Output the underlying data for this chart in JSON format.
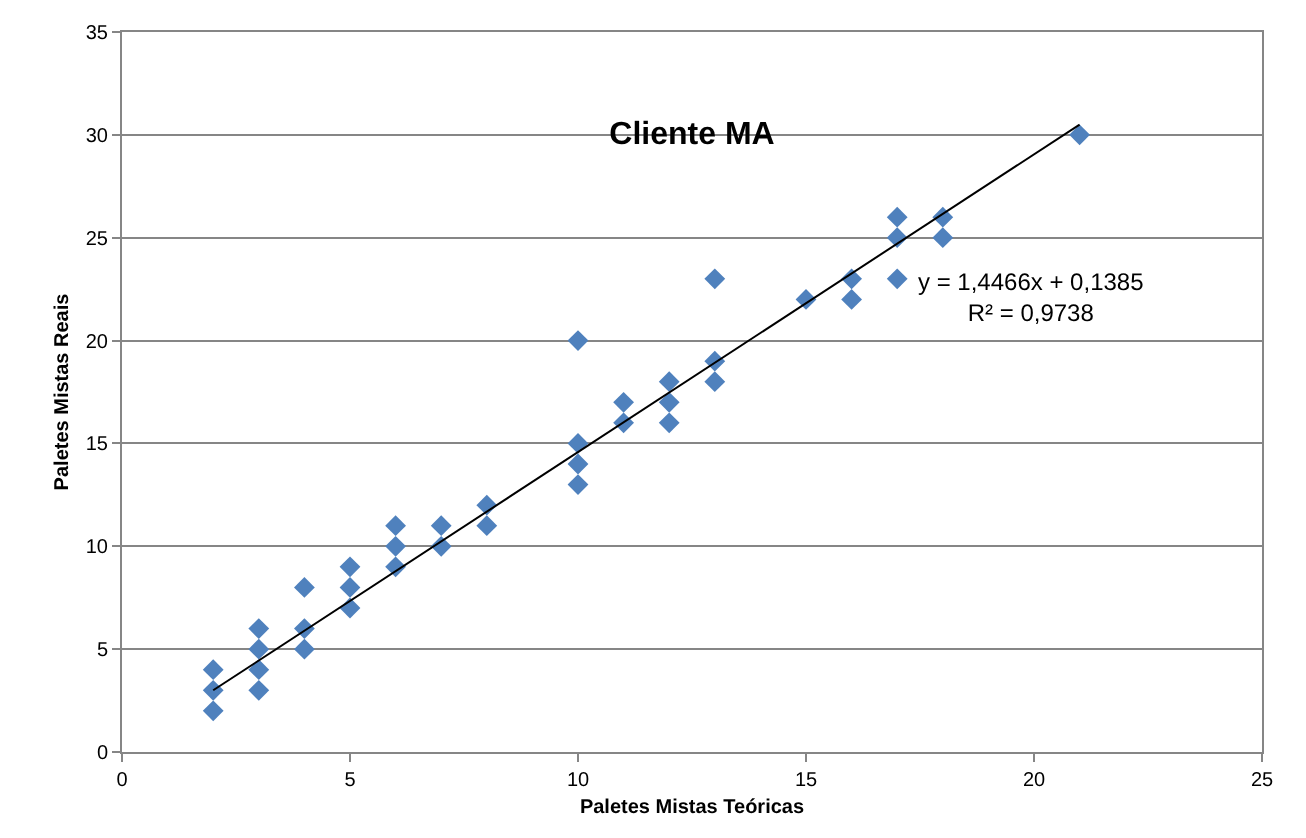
{
  "chart_data": {
    "type": "scatter",
    "title": "Cliente MA",
    "xlabel": "Paletes Mistas Teóricas",
    "ylabel": "Paletes Mistas Reais",
    "series": [
      {
        "color": "#4f81bd",
        "marker": "diamond",
        "x": [
          2,
          2,
          2,
          3,
          3,
          3,
          3,
          4,
          4,
          4,
          5,
          5,
          5,
          6,
          6,
          6,
          7,
          7,
          8,
          8,
          10,
          10,
          10,
          10,
          11,
          11,
          12,
          12,
          12,
          13,
          13,
          13,
          15,
          16,
          16,
          17,
          17,
          17,
          18,
          18,
          21
        ],
        "values": [
          2,
          3,
          4,
          3,
          4,
          5,
          6,
          5,
          6,
          8,
          7,
          8,
          9,
          9,
          10,
          11,
          10,
          11,
          11,
          12,
          13,
          14,
          15,
          20,
          16,
          17,
          16,
          17,
          18,
          18,
          19,
          23,
          22,
          22,
          23,
          23,
          25,
          26,
          25,
          26,
          30
        ]
      },
      {
        "type": "line",
        "color": "#000000",
        "marker": "none",
        "x": [
          2,
          21
        ],
        "values": [
          3.0,
          30.5
        ]
      }
    ],
    "annotations": [
      "y = 1,4466x + 0,1385\nR² = 0,9738"
    ],
    "xlim": [
      0,
      25
    ],
    "xticks": [
      0,
      5,
      10,
      15,
      20,
      25
    ],
    "ylim": [
      0,
      35
    ],
    "yticks": [
      0,
      5,
      10,
      15,
      20,
      25,
      30,
      35
    ],
    "grid": "y"
  }
}
